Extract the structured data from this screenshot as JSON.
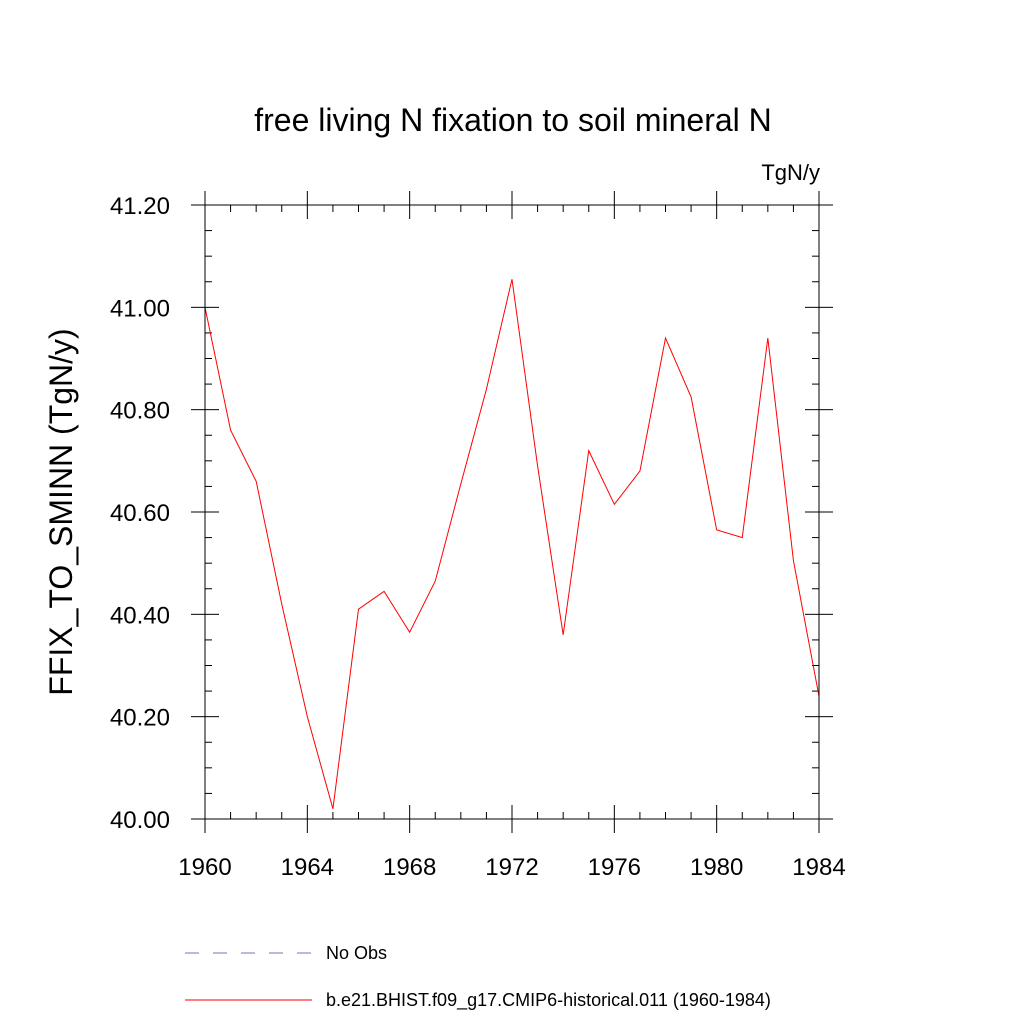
{
  "chart_data": {
    "type": "line",
    "title": "free living N fixation to soil mineral N",
    "units": "TgN/y",
    "xlabel": "",
    "ylabel": "FFIX_TO_SMINN  (TgN/y)",
    "xlim": [
      1960,
      1984
    ],
    "ylim": [
      40.0,
      41.2
    ],
    "x_ticks": [
      "1960",
      "1964",
      "1968",
      "1972",
      "1976",
      "1980",
      "1984"
    ],
    "y_ticks": [
      "40.00",
      "40.20",
      "40.40",
      "40.60",
      "40.80",
      "41.00",
      "41.20"
    ],
    "grid": false,
    "series": [
      {
        "name": "b.e21.BHIST.f09_g17.CMIP6-historical.011 (1960-1984)",
        "color": "#ff0000",
        "x": [
          1960,
          1961,
          1962,
          1963,
          1964,
          1965,
          1966,
          1967,
          1968,
          1969,
          1970,
          1971,
          1972,
          1973,
          1974,
          1975,
          1976,
          1977,
          1978,
          1979,
          1980,
          1981,
          1982,
          1983,
          1984
        ],
        "values": [
          41.0,
          40.76,
          40.66,
          40.42,
          40.2,
          40.02,
          40.41,
          40.445,
          40.365,
          40.465,
          40.655,
          40.84,
          41.055,
          40.69,
          40.36,
          40.72,
          40.615,
          40.68,
          40.94,
          40.825,
          40.565,
          40.55,
          40.94,
          40.505,
          40.24
        ]
      }
    ],
    "legend": [
      {
        "label": "No Obs",
        "color": "#7b6fb4",
        "style": "dashed"
      },
      {
        "label": "b.e21.BHIST.f09_g17.CMIP6-historical.011 (1960-1984)",
        "color": "#ff0000",
        "style": "solid"
      }
    ]
  }
}
